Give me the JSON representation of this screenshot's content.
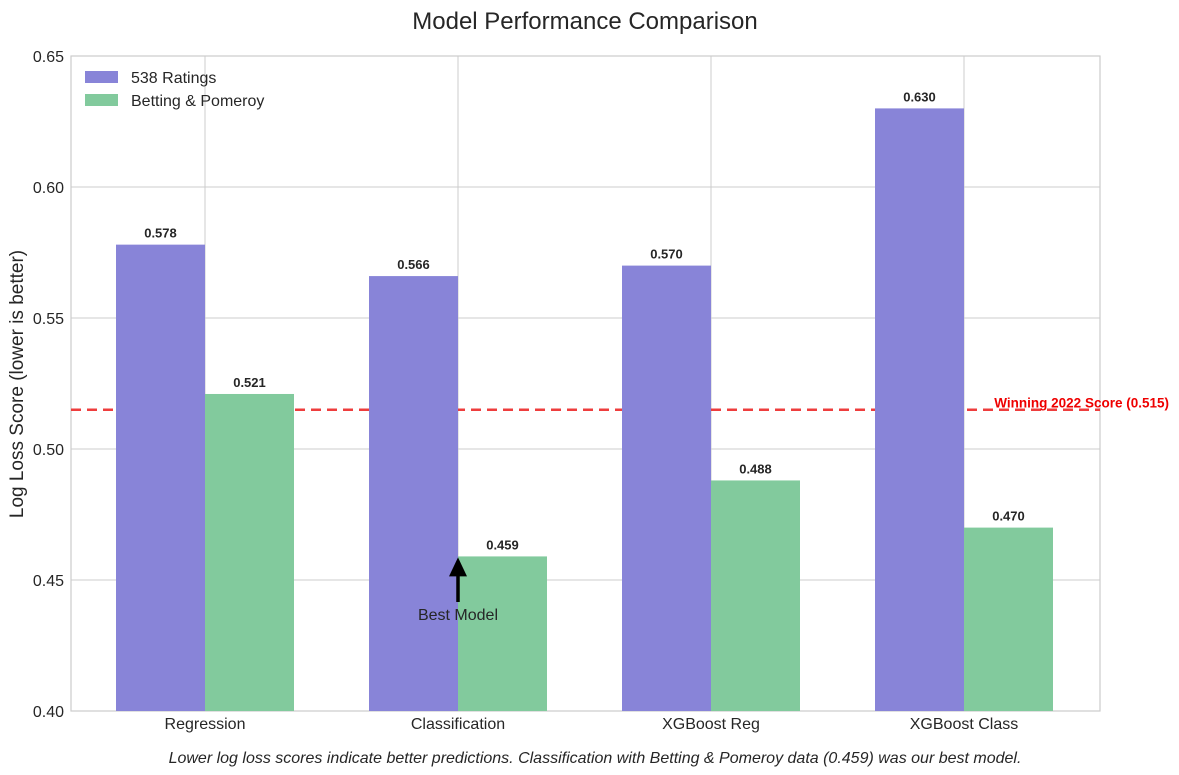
{
  "chart_data": {
    "type": "bar",
    "title": "Model Performance Comparison",
    "xlabel": "",
    "ylabel": "Log Loss Score (lower is better)",
    "ylim": [
      0.4,
      0.65
    ],
    "yticks": [
      "0.40",
      "0.45",
      "0.50",
      "0.55",
      "0.60",
      "0.65"
    ],
    "grid": true,
    "legend_position": "top-left",
    "categories": [
      "Regression",
      "Classification",
      "XGBoost Reg",
      "XGBoost Class"
    ],
    "series": [
      {
        "name": "538 Ratings",
        "color": "#8884d8",
        "values": [
          0.578,
          0.566,
          0.57,
          0.63
        ],
        "labels": [
          "0.578",
          "0.566",
          "0.570",
          "0.630"
        ]
      },
      {
        "name": "Betting & Pomeroy",
        "color": "#82ca9d",
        "values": [
          0.521,
          0.459,
          0.488,
          0.47
        ],
        "labels": [
          "0.521",
          "0.459",
          "0.488",
          "0.470"
        ]
      }
    ],
    "reference_line": {
      "value": 0.515,
      "label": "Winning 2022 Score (0.515)",
      "color": "#ee3333",
      "style": "dashed"
    },
    "annotation": {
      "text": "Best Model",
      "category": "Classification",
      "series": "Betting & Pomeroy",
      "value": 0.459
    },
    "caption": "Lower log loss scores indicate better predictions. Classification with Betting & Pomeroy data (0.459) was our best model."
  }
}
